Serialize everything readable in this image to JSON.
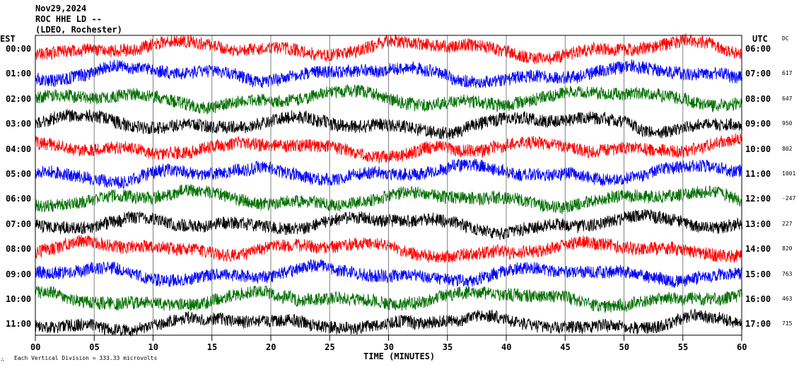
{
  "header": {
    "date": "Nov29,2024",
    "station": "ROC HHE LD --",
    "network": "(LDEO, Rochester)"
  },
  "left_axis_label": "EST",
  "right_axis_label": "UTC",
  "dc_label": "DC",
  "footer": {
    "x_axis_label": "TIME (MINUTES)",
    "division_note": "Each Vertical Division = 333.33 microvolts",
    "corner_mark": "∴"
  },
  "chart_data": {
    "type": "line",
    "title": "",
    "xlabel": "TIME (MINUTES)",
    "xlim": [
      0,
      60
    ],
    "x_ticks": [
      "00",
      "05",
      "10",
      "15",
      "20",
      "25",
      "30",
      "35",
      "40",
      "45",
      "50",
      "55",
      "60"
    ],
    "grid": "vertical lines every 5 minutes",
    "trace_colors": [
      "#000000",
      "#ff0000",
      "#0000ff",
      "#007000"
    ],
    "rows": [
      {
        "est": "00:00",
        "utc": "06:00",
        "dc": "",
        "color": "#ff0000"
      },
      {
        "est": "01:00",
        "utc": "07:00",
        "dc": "617",
        "color": "#0000ff"
      },
      {
        "est": "02:00",
        "utc": "08:00",
        "dc": "647",
        "color": "#007000"
      },
      {
        "est": "03:00",
        "utc": "09:00",
        "dc": "950",
        "color": "#000000"
      },
      {
        "est": "04:00",
        "utc": "10:00",
        "dc": "802",
        "color": "#ff0000"
      },
      {
        "est": "05:00",
        "utc": "11:00",
        "dc": "1001",
        "color": "#0000ff"
      },
      {
        "est": "06:00",
        "utc": "12:00",
        "dc": "-247",
        "color": "#007000"
      },
      {
        "est": "07:00",
        "utc": "13:00",
        "dc": "227",
        "color": "#000000"
      },
      {
        "est": "08:00",
        "utc": "14:00",
        "dc": "820",
        "color": "#ff0000"
      },
      {
        "est": "09:00",
        "utc": "15:00",
        "dc": "763",
        "color": "#0000ff"
      },
      {
        "est": "10:00",
        "utc": "16:00",
        "dc": "463",
        "color": "#007000"
      },
      {
        "est": "11:00",
        "utc": "17:00",
        "dc": "715",
        "color": "#000000"
      }
    ]
  }
}
